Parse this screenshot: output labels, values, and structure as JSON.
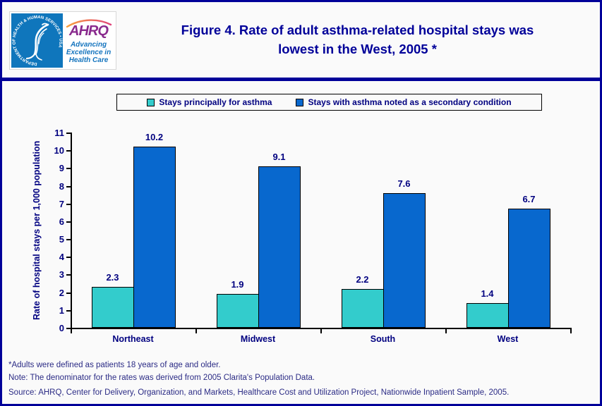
{
  "page": {
    "background": "#FAFAFA",
    "border_color": "#000099"
  },
  "header": {
    "title_line1": "Figure 4. Rate of adult asthma-related hospital stays was",
    "title_line2": "lowest in the West, 2005 *",
    "logo": {
      "hhs_seal_text": "DEPARTMENT OF HEALTH & HUMAN SERVICES • USA",
      "ahrq_acronym": "AHRQ",
      "ahrq_tagline_line1": "Advancing",
      "ahrq_tagline_line2": "Excellence in",
      "ahrq_tagline_line3": "Health Care"
    }
  },
  "chart_data": {
    "type": "bar",
    "title": "Figure 4. Rate of adult asthma-related hospital stays was lowest in the West, 2005 *",
    "categories": [
      "Northeast",
      "Midwest",
      "South",
      "West"
    ],
    "series": [
      {
        "name": "Stays principally for asthma",
        "color": "#33CCCC",
        "values": [
          2.3,
          1.9,
          2.2,
          1.4
        ]
      },
      {
        "name": "Stays with asthma noted as a secondary condition",
        "color": "#0868CE",
        "values": [
          10.2,
          9.1,
          7.6,
          6.7
        ]
      }
    ],
    "xlabel": "",
    "ylabel": "Rate of hospital stays per 1,000 population",
    "ylim": [
      0,
      11
    ],
    "ytick_step": 1,
    "grid": false,
    "legend_position": "top",
    "data_labels": true
  },
  "footer": {
    "note1": "*Adults were defined as patients 18 years of age and older.",
    "note2": "Note: The denominator for the rates was derived from 2005 Clarita's Population Data.",
    "note3": "Source: AHRQ, Center for Delivery, Organization, and Markets, Healthcare Cost and Utilization Project, Nationwide Inpatient Sample, 2005."
  }
}
